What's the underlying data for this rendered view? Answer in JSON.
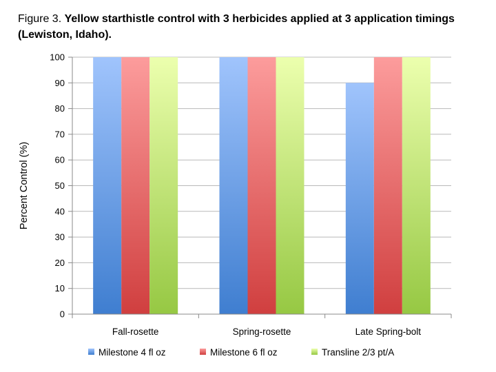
{
  "figure": {
    "label": "Figure 3.",
    "title_line1": "Yellow starthistle control with 3 herbicides applied at 3 application timings",
    "title_line2": "(Lewiston, Idaho)."
  },
  "chart_data": {
    "type": "bar",
    "categories": [
      "Fall-rosette",
      "Spring-rosette",
      "Late Spring-bolt"
    ],
    "series": [
      {
        "name": "Milestone 4 fl oz",
        "values": [
          100,
          100,
          90
        ],
        "color_top": "#a0c4fc",
        "color_bottom": "#3f7ed0"
      },
      {
        "name": "Milestone 6 fl oz",
        "values": [
          100,
          100,
          100
        ],
        "color_top": "#fc9c9c",
        "color_bottom": "#d03f3f"
      },
      {
        "name": "Transline 2/3 pt/A",
        "values": [
          100,
          100,
          100
        ],
        "color_top": "#ecffae",
        "color_bottom": "#96c843"
      }
    ],
    "xlabel": "",
    "ylabel": "Percent Control (%)",
    "ylim": [
      0,
      100
    ],
    "yticks": [
      0,
      10,
      20,
      30,
      40,
      50,
      60,
      70,
      80,
      90,
      100
    ],
    "grid": true,
    "legend_position": "bottom"
  }
}
